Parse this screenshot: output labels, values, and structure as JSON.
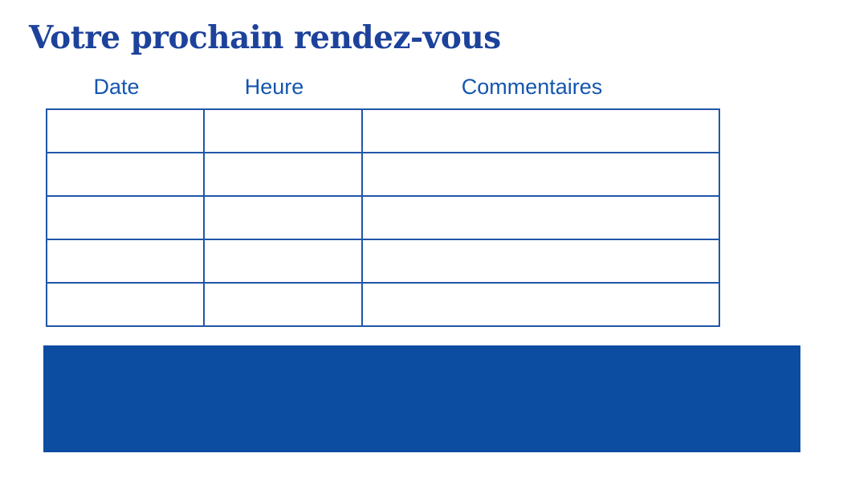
{
  "page": {
    "title": "Votre prochain rendez-vous"
  },
  "table": {
    "headers": [
      "Date",
      "Heure",
      "Commentaires"
    ],
    "rows": [
      [
        "",
        "",
        ""
      ],
      [
        "",
        "",
        ""
      ],
      [
        "",
        "",
        ""
      ],
      [
        "",
        "",
        ""
      ],
      [
        "",
        "",
        ""
      ]
    ]
  },
  "colors": {
    "title_text": "#1d429b",
    "header_text": "#1456ae",
    "table_border": "#2156a8",
    "banner": "#0d4da1"
  }
}
